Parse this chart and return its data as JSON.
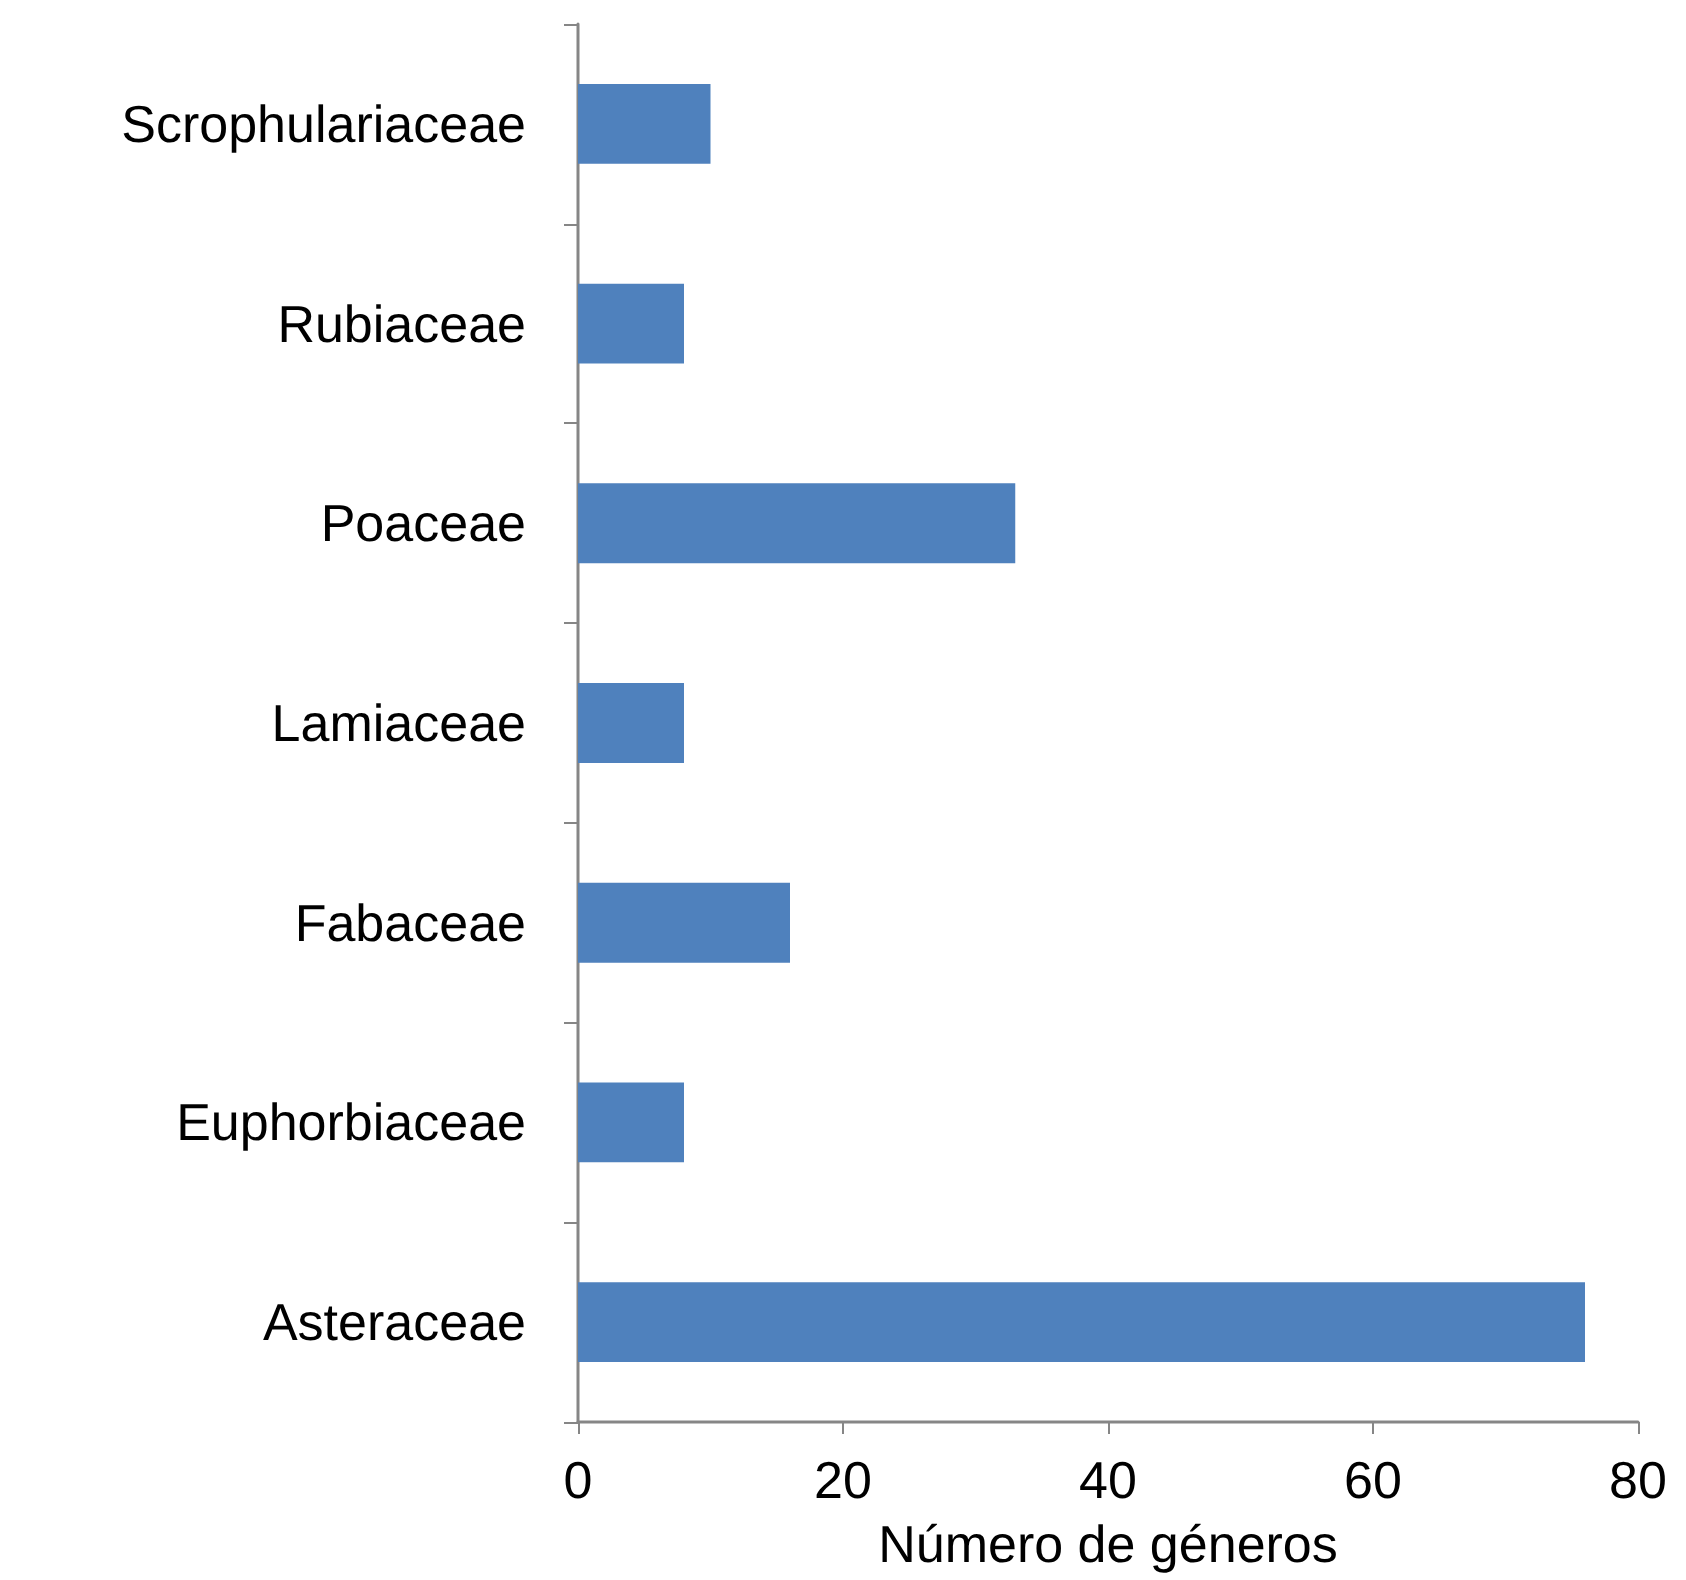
{
  "chart_data": {
    "type": "bar",
    "orientation": "horizontal",
    "xlabel": "Número de géneros",
    "categories": [
      "Scrophulariaceae",
      "Rubiaceae",
      "Poaceae",
      "Lamiaceae",
      "Fabaceae",
      "Euphorbiaceae",
      "Asteraceae"
    ],
    "values": [
      10,
      8,
      33,
      8,
      16,
      8,
      76
    ],
    "color": "#4f81bd",
    "xlim": [
      0,
      80
    ],
    "xticks": [
      0,
      20,
      40,
      60,
      80
    ],
    "grid": false
  }
}
